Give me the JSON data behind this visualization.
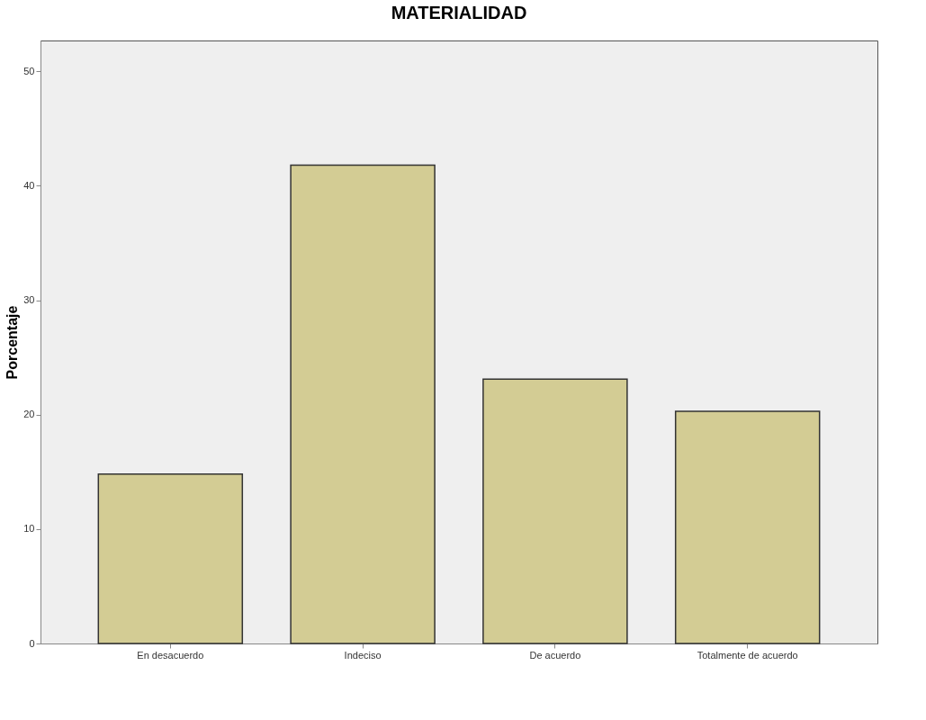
{
  "chart_data": {
    "type": "bar",
    "title": "MATERIALIDAD",
    "ylabel": "Porcentaje",
    "categories": [
      "En desacuerdo",
      "Indeciso",
      "De acuerdo",
      "Totalmente de acuerdo"
    ],
    "series": [
      {
        "color": "#d3cc94",
        "values": [
          14.8,
          41.8,
          23.1,
          20.3
        ]
      }
    ],
    "ylim": [
      0,
      52.7
    ],
    "yticks": [
      0,
      10,
      20,
      30,
      40,
      50
    ],
    "grid": false
  }
}
